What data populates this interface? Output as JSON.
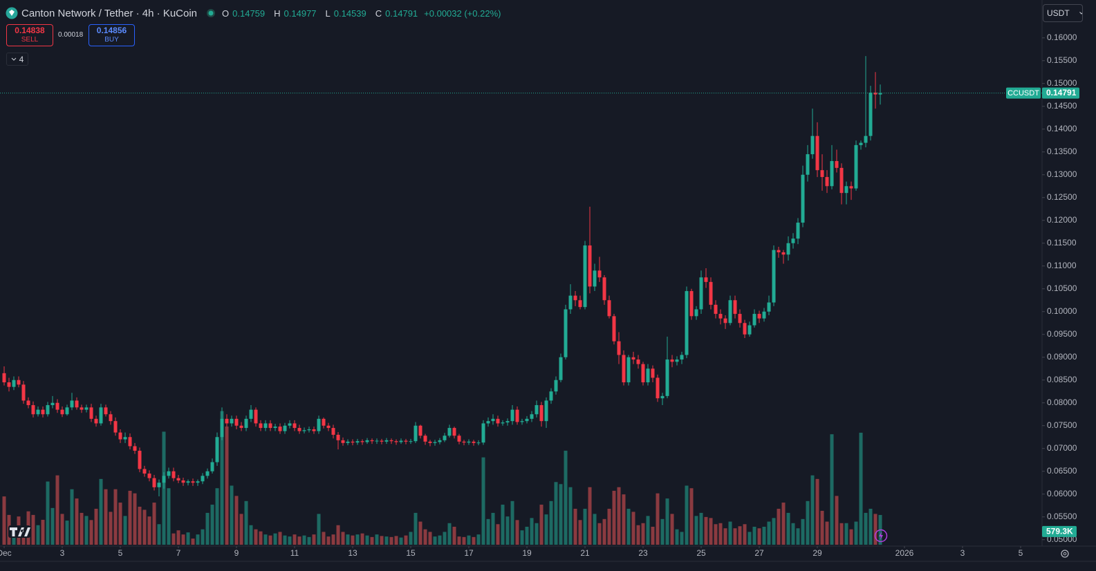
{
  "header": {
    "title": "Canton Network / Tether · 4h · KuCoin",
    "ohlc_labels": [
      "O",
      "H",
      "L",
      "C"
    ],
    "change": "+0.00032 (+0.22%)",
    "sell_price": "0.14838",
    "sell_label": "SELL",
    "spread": "0.00018",
    "buy_price": "0.14856",
    "buy_label": "BUY",
    "indicator_count": "4",
    "currency": "USDT",
    "symbol": "CCUSDT"
  },
  "chart_data": {
    "type": "candlestick",
    "up_color": "#22ab94",
    "down_color": "#f23645",
    "volume_up_color": "#1d6a63",
    "volume_down_color": "#8b3a40",
    "grid": false,
    "ylim": [
      0.0489,
      0.1683
    ],
    "yticks": [
      {
        "value": 0.05,
        "label": "0.05000"
      },
      {
        "value": 0.055,
        "label": "0.05500"
      },
      {
        "value": 0.06,
        "label": "0.06000"
      },
      {
        "value": 0.065,
        "label": "0.06500"
      },
      {
        "value": 0.07,
        "label": "0.07000"
      },
      {
        "value": 0.075,
        "label": "0.07500"
      },
      {
        "value": 0.08,
        "label": "0.08000"
      },
      {
        "value": 0.085,
        "label": "0.08500"
      },
      {
        "value": 0.09,
        "label": "0.09000"
      },
      {
        "value": 0.095,
        "label": "0.09500"
      },
      {
        "value": 0.1,
        "label": "0.10000"
      },
      {
        "value": 0.105,
        "label": "0.10500"
      },
      {
        "value": 0.11,
        "label": "0.11000"
      },
      {
        "value": 0.115,
        "label": "0.11500"
      },
      {
        "value": 0.12,
        "label": "0.12000"
      },
      {
        "value": 0.125,
        "label": "0.12500"
      },
      {
        "value": 0.13,
        "label": "0.13000"
      },
      {
        "value": 0.135,
        "label": "0.13500"
      },
      {
        "value": 0.14,
        "label": "0.14000"
      },
      {
        "value": 0.145,
        "label": "0.14500"
      },
      {
        "value": 0.15,
        "label": "0.15000"
      },
      {
        "value": 0.155,
        "label": "0.15500"
      },
      {
        "value": 0.16,
        "label": "0.16000"
      }
    ],
    "xticks": [
      {
        "value": 0,
        "label": "Dec"
      },
      {
        "value": 12,
        "label": "3"
      },
      {
        "value": 24,
        "label": "5"
      },
      {
        "value": 36,
        "label": "7"
      },
      {
        "value": 48,
        "label": "9"
      },
      {
        "value": 60,
        "label": "11"
      },
      {
        "value": 72,
        "label": "13"
      },
      {
        "value": 84,
        "label": "15"
      },
      {
        "value": 96,
        "label": "17"
      },
      {
        "value": 108,
        "label": "19"
      },
      {
        "value": 120,
        "label": "21"
      },
      {
        "value": 132,
        "label": "23"
      },
      {
        "value": 144,
        "label": "25"
      },
      {
        "value": 156,
        "label": "27"
      },
      {
        "value": 168,
        "label": "29"
      },
      {
        "value": 186,
        "label": "2026"
      },
      {
        "value": 198,
        "label": "3"
      },
      {
        "value": 210,
        "label": "5"
      }
    ],
    "open": [
      0.0865,
      0.0845,
      0.0835,
      0.085,
      0.084,
      0.0805,
      0.0795,
      0.0775,
      0.0785,
      0.0775,
      0.0795,
      0.08,
      0.0785,
      0.0775,
      0.079,
      0.0805,
      0.079,
      0.0785,
      0.079,
      0.0765,
      0.0755,
      0.079,
      0.0775,
      0.076,
      0.0735,
      0.072,
      0.0725,
      0.0705,
      0.0695,
      0.0655,
      0.0645,
      0.0635,
      0.0615,
      0.0625,
      0.064,
      0.065,
      0.0635,
      0.063,
      0.0625,
      0.0628,
      0.0625,
      0.0628,
      0.064,
      0.065,
      0.067,
      0.0725,
      0.0765,
      0.0755,
      0.0765,
      0.075,
      0.0745,
      0.0765,
      0.0785,
      0.0755,
      0.0745,
      0.0755,
      0.0745,
      0.0748,
      0.0738,
      0.075,
      0.0755,
      0.0745,
      0.0738,
      0.074,
      0.0742,
      0.0738,
      0.0765,
      0.075,
      0.0745,
      0.073,
      0.0718,
      0.0712,
      0.0715,
      0.0713,
      0.0716,
      0.0714,
      0.0718,
      0.0716,
      0.0717,
      0.0715,
      0.0718,
      0.0716,
      0.0714,
      0.0717,
      0.0715,
      0.0716,
      0.075,
      0.0728,
      0.0715,
      0.0712,
      0.0714,
      0.0718,
      0.0728,
      0.0745,
      0.0728,
      0.0715,
      0.0713,
      0.0715,
      0.0712,
      0.0713,
      0.0755,
      0.076,
      0.0765,
      0.0755,
      0.0757,
      0.076,
      0.0785,
      0.0758,
      0.076,
      0.0765,
      0.0775,
      0.0795,
      0.076,
      0.0805,
      0.0825,
      0.085,
      0.09,
      0.1005,
      0.1035,
      0.1025,
      0.101,
      0.1145,
      0.1055,
      0.109,
      0.1075,
      0.1025,
      0.099,
      0.0935,
      0.0905,
      0.0845,
      0.09,
      0.0895,
      0.0885,
      0.0845,
      0.0875,
      0.0855,
      0.081,
      0.0815,
      0.0895,
      0.089,
      0.0895,
      0.0905,
      0.1045,
      0.099,
      0.1005,
      0.1075,
      0.1065,
      0.1015,
      0.0995,
      0.0985,
      0.0975,
      0.1025,
      0.0995,
      0.0975,
      0.095,
      0.097,
      0.0995,
      0.0985,
      0.1,
      0.102,
      0.1135,
      0.113,
      0.1125,
      0.115,
      0.116,
      0.1195,
      0.13,
      0.1345,
      0.1385,
      0.131,
      0.1295,
      0.1275,
      0.133,
      0.1315,
      0.126,
      0.1275,
      0.127,
      0.1365,
      0.137,
      0.1385,
      0.148,
      0.14759
    ],
    "high": [
      0.088,
      0.0855,
      0.0858,
      0.0858,
      0.0848,
      0.0812,
      0.0803,
      0.0792,
      0.0792,
      0.0802,
      0.0815,
      0.0808,
      0.0792,
      0.0796,
      0.0822,
      0.0812,
      0.0796,
      0.0796,
      0.0798,
      0.0772,
      0.0798,
      0.0796,
      0.0782,
      0.0768,
      0.0742,
      0.0735,
      0.0733,
      0.0712,
      0.0702,
      0.0662,
      0.0652,
      0.0642,
      0.0632,
      0.0648,
      0.0658,
      0.0658,
      0.0642,
      0.0636,
      0.0632,
      0.0634,
      0.0632,
      0.0646,
      0.0656,
      0.0678,
      0.0735,
      0.079,
      0.0775,
      0.0772,
      0.0772,
      0.0758,
      0.0772,
      0.0795,
      0.079,
      0.0762,
      0.0762,
      0.0762,
      0.0754,
      0.0755,
      0.0756,
      0.0762,
      0.0762,
      0.0752,
      0.0746,
      0.0748,
      0.0748,
      0.0772,
      0.0768,
      0.0756,
      0.0752,
      0.0736,
      0.0724,
      0.072,
      0.072,
      0.0721,
      0.072,
      0.0723,
      0.0722,
      0.0722,
      0.0721,
      0.0723,
      0.0722,
      0.072,
      0.0722,
      0.0721,
      0.0721,
      0.0758,
      0.0752,
      0.0732,
      0.0719,
      0.0719,
      0.0723,
      0.0734,
      0.0752,
      0.0748,
      0.0732,
      0.0719,
      0.072,
      0.0719,
      0.0718,
      0.0762,
      0.0768,
      0.0775,
      0.0772,
      0.0762,
      0.0766,
      0.0795,
      0.0792,
      0.0765,
      0.0771,
      0.0782,
      0.0805,
      0.0802,
      0.0812,
      0.0832,
      0.0858,
      0.0908,
      0.1015,
      0.106,
      0.1045,
      0.1035,
      0.1155,
      0.123,
      0.1105,
      0.112,
      0.108,
      0.1035,
      0.0995,
      0.0955,
      0.0915,
      0.0905,
      0.0912,
      0.0905,
      0.089,
      0.0885,
      0.0882,
      0.0862,
      0.0822,
      0.0945,
      0.0905,
      0.0902,
      0.0912,
      0.1055,
      0.105,
      0.1012,
      0.109,
      0.1095,
      0.1075,
      0.1025,
      0.1005,
      0.0992,
      0.1035,
      0.1035,
      0.1005,
      0.0982,
      0.0978,
      0.1005,
      0.1002,
      0.1008,
      0.1035,
      0.1145,
      0.1142,
      0.1135,
      0.1165,
      0.1172,
      0.1205,
      0.132,
      0.1365,
      0.1445,
      0.1415,
      0.1345,
      0.131,
      0.1365,
      0.1355,
      0.1325,
      0.1285,
      0.1285,
      0.1375,
      0.1375,
      0.156,
      0.1495,
      0.1525,
      0.14977
    ],
    "low": [
      0.0838,
      0.0825,
      0.0828,
      0.0834,
      0.0798,
      0.0788,
      0.0768,
      0.077,
      0.0768,
      0.077,
      0.0788,
      0.0778,
      0.0769,
      0.0772,
      0.0784,
      0.0785,
      0.0778,
      0.0779,
      0.0758,
      0.0748,
      0.075,
      0.077,
      0.0752,
      0.0728,
      0.0712,
      0.0712,
      0.0698,
      0.0688,
      0.0648,
      0.0638,
      0.0628,
      0.0608,
      0.0595,
      0.0612,
      0.0634,
      0.0628,
      0.0624,
      0.0618,
      0.0619,
      0.0618,
      0.0618,
      0.0622,
      0.0634,
      0.0645,
      0.0662,
      0.0718,
      0.0748,
      0.0748,
      0.0742,
      0.0738,
      0.0738,
      0.0758,
      0.0748,
      0.0738,
      0.0738,
      0.0738,
      0.0738,
      0.0732,
      0.0732,
      0.0744,
      0.0738,
      0.0732,
      0.0733,
      0.0735,
      0.0732,
      0.0732,
      0.0744,
      0.0738,
      0.0722,
      0.0698,
      0.0706,
      0.0707,
      0.0707,
      0.0708,
      0.0708,
      0.071,
      0.071,
      0.071,
      0.0709,
      0.071,
      0.071,
      0.0708,
      0.071,
      0.0709,
      0.071,
      0.0712,
      0.0722,
      0.0708,
      0.0705,
      0.0706,
      0.0709,
      0.0714,
      0.0724,
      0.0722,
      0.0709,
      0.0707,
      0.0708,
      0.0706,
      0.0707,
      0.0708,
      0.0748,
      0.0752,
      0.0748,
      0.075,
      0.075,
      0.0752,
      0.0752,
      0.0752,
      0.0755,
      0.0758,
      0.0768,
      0.0748,
      0.0745,
      0.0798,
      0.0818,
      0.0845,
      0.0895,
      0.0995,
      0.1012,
      0.1005,
      0.1005,
      0.104,
      0.1045,
      0.1065,
      0.1015,
      0.0985,
      0.0928,
      0.0885,
      0.0838,
      0.0838,
      0.0885,
      0.0875,
      0.0838,
      0.0838,
      0.0845,
      0.0802,
      0.0795,
      0.081,
      0.0878,
      0.0882,
      0.0885,
      0.0898,
      0.0982,
      0.0982,
      0.0995,
      0.1052,
      0.1005,
      0.0985,
      0.0972,
      0.0962,
      0.097,
      0.0985,
      0.0965,
      0.0942,
      0.0945,
      0.0965,
      0.0975,
      0.0978,
      0.0992,
      0.1012,
      0.1118,
      0.1105,
      0.1112,
      0.1138,
      0.1148,
      0.1185,
      0.1285,
      0.1335,
      0.1295,
      0.1265,
      0.126,
      0.1268,
      0.1305,
      0.1235,
      0.1235,
      0.1245,
      0.1265,
      0.1355,
      0.136,
      0.1375,
      0.1445,
      0.14539
    ],
    "close": [
      0.0845,
      0.0835,
      0.085,
      0.084,
      0.0805,
      0.0795,
      0.0775,
      0.0785,
      0.0775,
      0.0795,
      0.08,
      0.0785,
      0.0775,
      0.079,
      0.0805,
      0.079,
      0.0785,
      0.079,
      0.0765,
      0.0755,
      0.079,
      0.0775,
      0.076,
      0.0735,
      0.072,
      0.0725,
      0.0705,
      0.0695,
      0.0655,
      0.0645,
      0.0635,
      0.0615,
      0.0625,
      0.064,
      0.065,
      0.0635,
      0.063,
      0.0625,
      0.0628,
      0.0625,
      0.0628,
      0.064,
      0.065,
      0.067,
      0.0725,
      0.0765,
      0.0755,
      0.0765,
      0.075,
      0.0745,
      0.0765,
      0.0785,
      0.0755,
      0.0745,
      0.0755,
      0.0745,
      0.0748,
      0.0738,
      0.075,
      0.0755,
      0.0745,
      0.0738,
      0.074,
      0.0742,
      0.0738,
      0.0765,
      0.075,
      0.0745,
      0.073,
      0.0718,
      0.0712,
      0.0715,
      0.0713,
      0.0716,
      0.0714,
      0.0718,
      0.0716,
      0.0717,
      0.0715,
      0.0718,
      0.0716,
      0.0714,
      0.0717,
      0.0715,
      0.0716,
      0.075,
      0.0728,
      0.0715,
      0.0712,
      0.0714,
      0.0718,
      0.0728,
      0.0745,
      0.0728,
      0.0715,
      0.0713,
      0.0715,
      0.0712,
      0.0713,
      0.0755,
      0.076,
      0.0765,
      0.0755,
      0.0757,
      0.076,
      0.0785,
      0.0758,
      0.076,
      0.0765,
      0.0775,
      0.0795,
      0.076,
      0.0805,
      0.0825,
      0.085,
      0.09,
      0.1005,
      0.1035,
      0.1025,
      0.101,
      0.1145,
      0.1055,
      0.109,
      0.1075,
      0.1025,
      0.099,
      0.0935,
      0.0905,
      0.0845,
      0.09,
      0.0895,
      0.0885,
      0.0845,
      0.0875,
      0.0855,
      0.081,
      0.0815,
      0.0895,
      0.089,
      0.0895,
      0.0905,
      0.1045,
      0.099,
      0.1005,
      0.1075,
      0.1065,
      0.1015,
      0.0995,
      0.0985,
      0.0975,
      0.1025,
      0.0995,
      0.0975,
      0.095,
      0.097,
      0.0995,
      0.0985,
      0.1,
      0.102,
      0.1135,
      0.113,
      0.1125,
      0.115,
      0.116,
      0.1195,
      0.13,
      0.1345,
      0.1385,
      0.131,
      0.1295,
      0.1275,
      0.133,
      0.1315,
      0.126,
      0.1275,
      0.127,
      0.1365,
      0.137,
      0.1385,
      0.148,
      0.1476,
      0.14791
    ],
    "volume": {
      "ylim": [
        0,
        10600000
      ],
      "last_label": "579.3K",
      "values": [
        940000,
        580000,
        240000,
        550000,
        240000,
        650000,
        580000,
        380000,
        485000,
        1230000,
        715000,
        1350000,
        600000,
        470000,
        1080000,
        900000,
        620000,
        560000,
        480000,
        700000,
        1280000,
        1080000,
        640000,
        1080000,
        820000,
        560000,
        1050000,
        1000000,
        740000,
        680000,
        550000,
        820000,
        400000,
        2200000,
        1100000,
        220000,
        280000,
        200000,
        240000,
        120000,
        200000,
        300000,
        620000,
        780000,
        1100000,
        2600000,
        2300000,
        1150000,
        950000,
        600000,
        850000,
        380000,
        300000,
        260000,
        200000,
        180000,
        220000,
        250000,
        180000,
        160000,
        200000,
        160000,
        180000,
        150000,
        200000,
        600000,
        250000,
        160000,
        200000,
        380000,
        250000,
        200000,
        180000,
        200000,
        220000,
        180000,
        150000,
        200000,
        170000,
        160000,
        150000,
        170000,
        140000,
        180000,
        250000,
        620000,
        450000,
        300000,
        250000,
        160000,
        180000,
        250000,
        420000,
        350000,
        160000,
        150000,
        180000,
        150000,
        200000,
        1700000,
        500000,
        620000,
        400000,
        780000,
        550000,
        850000,
        480000,
        280000,
        350000,
        520000,
        420000,
        780000,
        590000,
        850000,
        1220000,
        1180000,
        1830000,
        1120000,
        700000,
        480000,
        700000,
        1120000,
        600000,
        420000,
        500000,
        700000,
        1050000,
        1120000,
        980000,
        700000,
        640000,
        380000,
        420000,
        560000,
        350000,
        1000000,
        500000,
        900000,
        600000,
        300000,
        250000,
        1150000,
        1100000,
        560000,
        620000,
        540000,
        520000,
        400000,
        420000,
        320000,
        450000,
        320000,
        360000,
        400000,
        250000,
        350000,
        320000,
        350000,
        450000,
        520000,
        700000,
        820000,
        620000,
        420000,
        320000,
        500000,
        850000,
        1350000,
        1280000,
        660000,
        450000,
        2150000,
        950000,
        420000,
        420000,
        300000,
        450000,
        2180000,
        620000,
        700000,
        600000,
        579300
      ]
    }
  }
}
